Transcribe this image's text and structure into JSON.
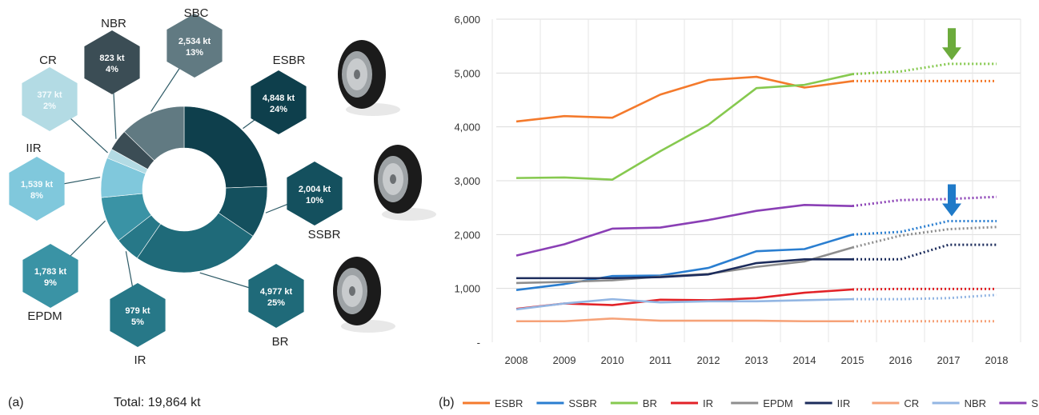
{
  "panel_a": {
    "label": "(a)",
    "total_text": "Total: 19,864 kt"
  },
  "panel_b": {
    "label": "(b)"
  },
  "chart_data": [
    {
      "type": "pie",
      "variant": "donut",
      "slices": [
        {
          "name": "ESBR",
          "value_text": "4,848 kt",
          "pct_text": "24%",
          "value": 4848,
          "color": "#0e3f4c"
        },
        {
          "name": "SSBR",
          "value_text": "2,004 kt",
          "pct_text": "10%",
          "value": 2004,
          "color": "#14505e"
        },
        {
          "name": "BR",
          "value_text": "4,977 kt",
          "pct_text": "25%",
          "value": 4977,
          "color": "#1f6a79"
        },
        {
          "name": "IR",
          "value_text": "979 kt",
          "pct_text": "5%",
          "value": 979,
          "color": "#277888"
        },
        {
          "name": "EPDM",
          "value_text": "1,783 kt",
          "pct_text": "9%",
          "value": 1783,
          "color": "#3a93a5"
        },
        {
          "name": "IIR",
          "value_text": "1,539 kt",
          "pct_text": "8%",
          "value": 1539,
          "color": "#80c8dc"
        },
        {
          "name": "CR",
          "value_text": "377 kt",
          "pct_text": "2%",
          "value": 377,
          "color": "#b3dbe4"
        },
        {
          "name": "NBR",
          "value_text": "823 kt",
          "pct_text": "4%",
          "value": 823,
          "color": "#3b4d55"
        },
        {
          "name": "SBC",
          "value_text": "2,534 kt",
          "pct_text": "13%",
          "value": 2534,
          "color": "#617a82"
        }
      ]
    },
    {
      "type": "line",
      "x": [
        2008,
        2009,
        2010,
        2011,
        2012,
        2013,
        2014,
        2015,
        2016,
        2017,
        2018
      ],
      "ylim": [
        0,
        6000
      ],
      "yticks": [
        {
          "value": 0,
          "label": "-"
        },
        {
          "value": 1000,
          "label": "1,000"
        },
        {
          "value": 2000,
          "label": "2,000"
        },
        {
          "value": 3000,
          "label": "3,000"
        },
        {
          "value": 4000,
          "label": "4,000"
        },
        {
          "value": 5000,
          "label": "5,000"
        },
        {
          "value": 6000,
          "label": "6,000"
        }
      ],
      "grid": true,
      "legend": "bottom",
      "forecast_from": 2015,
      "arrows": [
        {
          "x": 2017,
          "y": 5150,
          "color": "#6cab3c"
        },
        {
          "x": 2017,
          "y": 2250,
          "color": "#1f7ac8"
        }
      ],
      "series": [
        {
          "name": "ESBR",
          "color": "#f47a2c",
          "values": [
            4100,
            4200,
            4170,
            4600,
            4870,
            4930,
            4730,
            4850,
            4850,
            4850,
            4850
          ]
        },
        {
          "name": "SSBR",
          "color": "#2a7ed0",
          "values": [
            970,
            1080,
            1230,
            1240,
            1380,
            1690,
            1730,
            2000,
            2050,
            2250,
            2250
          ]
        },
        {
          "name": "BR",
          "color": "#86c94f",
          "values": [
            3050,
            3060,
            3020,
            3550,
            4040,
            4720,
            4780,
            4980,
            5030,
            5170,
            5170
          ]
        },
        {
          "name": "IR",
          "color": "#e22227",
          "values": [
            620,
            720,
            690,
            790,
            780,
            820,
            920,
            980,
            990,
            990,
            990
          ]
        },
        {
          "name": "EPDM",
          "color": "#8e8e8e",
          "values": [
            1100,
            1120,
            1150,
            1220,
            1270,
            1400,
            1500,
            1760,
            1980,
            2100,
            2140
          ]
        },
        {
          "name": "IIR",
          "color": "#1c2c5c",
          "values": [
            1190,
            1190,
            1190,
            1210,
            1260,
            1470,
            1540,
            1540,
            1540,
            1810,
            1810
          ]
        },
        {
          "name": "CR",
          "color": "#f6a278",
          "values": [
            390,
            390,
            440,
            400,
            400,
            400,
            390,
            390,
            390,
            390,
            390
          ]
        },
        {
          "name": "NBR",
          "color": "#93b6e3",
          "values": [
            610,
            720,
            800,
            740,
            760,
            760,
            780,
            800,
            800,
            820,
            880
          ]
        },
        {
          "name": "SBC",
          "color": "#8a3fb5",
          "values": [
            1610,
            1820,
            2110,
            2130,
            2270,
            2440,
            2550,
            2530,
            2640,
            2660,
            2700
          ]
        }
      ]
    }
  ]
}
